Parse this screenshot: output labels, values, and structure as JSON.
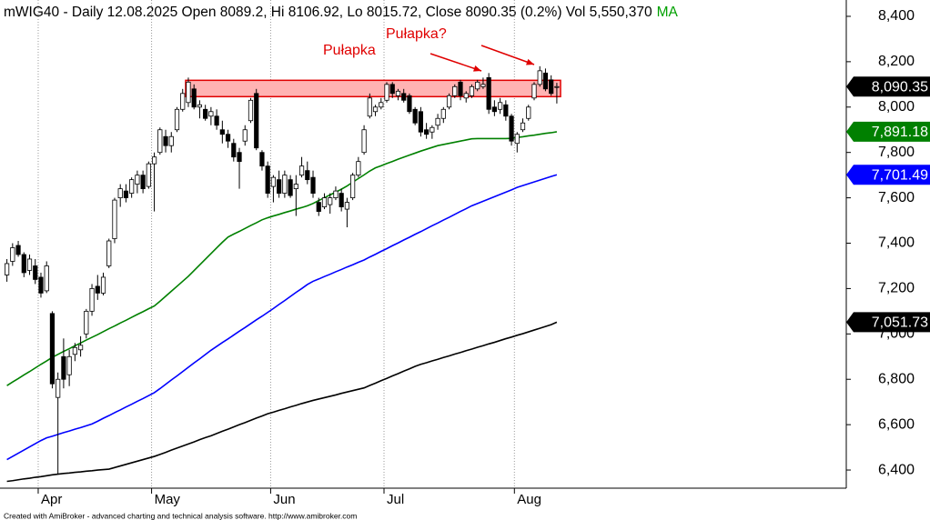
{
  "chart_data": {
    "type": "candlestick",
    "title": "mWIG40 - Daily 12.08.2025 Open 8089.2, Hi 8106.92, Lo 8015.72, Close 8090.35 (0.2%) Vol 5,550,370",
    "ma_label": "MA",
    "footer": "Created with AmiBroker - advanced charting and technical analysis software. http://www.amibroker.com",
    "categories": [
      null,
      null,
      null,
      null,
      null,
      null,
      "Apr",
      null,
      null,
      null,
      null,
      null,
      null,
      null,
      null,
      null,
      null,
      null,
      null,
      null,
      null,
      null,
      null,
      null,
      null,
      null,
      "May",
      null,
      null,
      null,
      null,
      null,
      null,
      null,
      null,
      null,
      null,
      null,
      null,
      null,
      null,
      null,
      null,
      null,
      null,
      null,
      null,
      "Jun",
      null,
      null,
      null,
      null,
      null,
      null,
      null,
      null,
      null,
      null,
      null,
      null,
      null,
      null,
      null,
      null,
      null,
      null,
      null,
      "Jul",
      null,
      null,
      null,
      null,
      null,
      null,
      null,
      null,
      null,
      null,
      null,
      null,
      null,
      null,
      null,
      null,
      null,
      null,
      null,
      null,
      null,
      null,
      "Aug",
      null,
      null,
      null,
      null,
      null,
      null,
      null
    ],
    "open": [
      7260,
      7320,
      7390,
      7350,
      7280,
      7300,
      7250,
      7190,
      7090,
      6720,
      6900,
      6820,
      6910,
      6930,
      7000,
      7100,
      7210,
      7180,
      7300,
      7420,
      7600,
      7630,
      7620,
      7660,
      7700,
      7650,
      7750,
      7800,
      7870,
      7830,
      7900,
      7990,
      8020,
      8080,
      8000,
      7990,
      7960,
      7960,
      7900,
      7880,
      7840,
      7800,
      7850,
      7940,
      8060,
      7800,
      7740,
      7650,
      7680,
      7620,
      7680,
      7640,
      7700,
      7720,
      7690,
      7580,
      7560,
      7570,
      7600,
      7620,
      7550,
      7600,
      7700,
      7800,
      7960,
      7980,
      8000,
      8030,
      8100,
      8050,
      8060,
      8050,
      7990,
      7980,
      7900,
      7890,
      7920,
      7950,
      8000,
      8050,
      8110,
      8040,
      8050,
      8080,
      8090,
      8130,
      8000,
      7990,
      8010,
      7960,
      7840,
      7900,
      7950,
      8040,
      8100,
      8150,
      8120,
      8089.2
    ],
    "high": [
      7330,
      7400,
      7410,
      7360,
      7350,
      7330,
      7270,
      7320,
      7100,
      6830,
      6980,
      6930,
      6960,
      6990,
      7110,
      7220,
      7260,
      7270,
      7420,
      7600,
      7660,
      7660,
      7690,
      7720,
      7720,
      7760,
      7800,
      7910,
      7900,
      7890,
      8000,
      8080,
      8130,
      8100,
      8030,
      8010,
      8000,
      7990,
      7940,
      7900,
      7860,
      7820,
      7920,
      8040,
      8080,
      7810,
      7760,
      7700,
      7720,
      7720,
      7700,
      7700,
      7780,
      7760,
      7720,
      7600,
      7620,
      7620,
      7650,
      7640,
      7600,
      7710,
      7780,
      7920,
      8060,
      8010,
      8040,
      8110,
      8110,
      8080,
      8080,
      8060,
      8000,
      8000,
      7930,
      7920,
      7970,
      8000,
      8060,
      8100,
      8120,
      8070,
      8100,
      8120,
      8130,
      8150,
      8030,
      8040,
      8030,
      7970,
      7890,
      7950,
      8010,
      8110,
      8180,
      8170,
      8140,
      8106.92
    ],
    "low": [
      7230,
      7300,
      7340,
      7250,
      7260,
      7220,
      7160,
      7180,
      6760,
      6380,
      6760,
      6770,
      6880,
      6900,
      6980,
      7080,
      7150,
      7170,
      7290,
      7400,
      7560,
      7580,
      7600,
      7620,
      7620,
      7640,
      7540,
      7790,
      7800,
      7800,
      7890,
      7980,
      8000,
      7990,
      7950,
      7940,
      7920,
      7900,
      7840,
      7820,
      7760,
      7640,
      7830,
      7930,
      7810,
      7720,
      7600,
      7580,
      7600,
      7600,
      7600,
      7520,
      7690,
      7660,
      7600,
      7520,
      7550,
      7530,
      7590,
      7540,
      7470,
      7590,
      7690,
      7790,
      7950,
      7960,
      7990,
      8020,
      8040,
      8030,
      8020,
      7970,
      7920,
      7870,
      7860,
      7860,
      7900,
      7930,
      7990,
      8040,
      8030,
      8020,
      8040,
      8070,
      8080,
      7970,
      7960,
      7970,
      7940,
      7830,
      7800,
      7890,
      7940,
      8030,
      8090,
      8070,
      8050,
      8015.72
    ],
    "close": [
      7310,
      7380,
      7350,
      7270,
      7330,
      7240,
      7180,
      7300,
      6780,
      6800,
      6800,
      6900,
      6940,
      6950,
      7100,
      7200,
      7180,
      7250,
      7410,
      7590,
      7640,
      7600,
      7680,
      7700,
      7640,
      7750,
      7780,
      7900,
      7830,
      7870,
      7990,
      8060,
      8110,
      8000,
      8010,
      7950,
      7980,
      7920,
      7880,
      7850,
      7780,
      7760,
      7900,
      8030,
      7820,
      7740,
      7620,
      7690,
      7620,
      7700,
      7610,
      7660,
      7740,
      7680,
      7620,
      7540,
      7600,
      7600,
      7630,
      7560,
      7580,
      7700,
      7760,
      7900,
      8040,
      8000,
      8020,
      8100,
      8060,
      8070,
      8030,
      7980,
      7930,
      7890,
      7880,
      7910,
      7950,
      7990,
      8050,
      8090,
      8050,
      8060,
      8090,
      8110,
      8100,
      7990,
      7980,
      8020,
      7960,
      7850,
      7880,
      7930,
      8000,
      8100,
      8160,
      8080,
      8060,
      8090.35
    ],
    "close_label": "8,090.35",
    "up_color": "#ffffff",
    "down_color": "#000000",
    "series": [
      {
        "color": "#008000",
        "value_label": "7,891.18",
        "values": [
          6772,
          6788,
          6803,
          6819,
          6834,
          6850,
          6866,
          6881,
          6897,
          6910,
          6923,
          6935,
          6948,
          6960,
          6973,
          6985,
          6997,
          7010,
          7023,
          7035,
          7048,
          7060,
          7073,
          7086,
          7098,
          7111,
          7123,
          7144,
          7166,
          7188,
          7210,
          7232,
          7254,
          7279,
          7304,
          7329,
          7354,
          7379,
          7404,
          7427,
          7440,
          7452,
          7465,
          7478,
          7490,
          7503,
          7512,
          7520,
          7527,
          7535,
          7542,
          7550,
          7557,
          7565,
          7575,
          7588,
          7600,
          7613,
          7625,
          7638,
          7652,
          7669,
          7685,
          7701,
          7718,
          7732,
          7741,
          7751,
          7760,
          7770,
          7779,
          7788,
          7797,
          7806,
          7814,
          7822,
          7830,
          7835,
          7840,
          7845,
          7850,
          7855,
          7860,
          7861,
          7861,
          7861,
          7861,
          7861,
          7861,
          7862,
          7866,
          7869,
          7873,
          7876,
          7880,
          7884,
          7887,
          7891.18
        ]
      },
      {
        "color": "#0000ff",
        "value_label": "7,701.49",
        "values": [
          6446,
          6460,
          6474,
          6488,
          6502,
          6516,
          6530,
          6542,
          6549,
          6557,
          6565,
          6572,
          6580,
          6587,
          6595,
          6603,
          6615,
          6628,
          6640,
          6653,
          6665,
          6678,
          6690,
          6703,
          6715,
          6728,
          6741,
          6759,
          6778,
          6797,
          6815,
          6834,
          6853,
          6872,
          6890,
          6909,
          6928,
          6945,
          6962,
          6978,
          6995,
          7012,
          7028,
          7045,
          7062,
          7078,
          7095,
          7112,
          7130,
          7147,
          7165,
          7183,
          7200,
          7218,
          7232,
          7242,
          7253,
          7263,
          7274,
          7284,
          7295,
          7305,
          7316,
          7326,
          7339,
          7351,
          7364,
          7376,
          7389,
          7401,
          7414,
          7426,
          7439,
          7451,
          7464,
          7477,
          7489,
          7502,
          7514,
          7527,
          7540,
          7552,
          7565,
          7575,
          7585,
          7595,
          7605,
          7615,
          7625,
          7635,
          7646,
          7654,
          7662,
          7670,
          7678,
          7686,
          7694,
          7701.49
        ]
      },
      {
        "color": "#000000",
        "value_label": "7,051.73",
        "values": [
          6350,
          6353,
          6357,
          6361,
          6364,
          6368,
          6371,
          6375,
          6379,
          6382,
          6385,
          6387,
          6390,
          6392,
          6395,
          6397,
          6400,
          6402,
          6404,
          6411,
          6418,
          6425,
          6432,
          6439,
          6446,
          6453,
          6460,
          6469,
          6478,
          6488,
          6497,
          6506,
          6515,
          6524,
          6534,
          6543,
          6551,
          6561,
          6571,
          6580,
          6590,
          6600,
          6609,
          6619,
          6629,
          6638,
          6648,
          6655,
          6663,
          6670,
          6678,
          6685,
          6693,
          6700,
          6707,
          6713,
          6719,
          6725,
          6731,
          6738,
          6744,
          6750,
          6756,
          6762,
          6773,
          6783,
          6794,
          6804,
          6815,
          6825,
          6836,
          6846,
          6857,
          6866,
          6873,
          6881,
          6888,
          6896,
          6903,
          6911,
          6918,
          6926,
          6933,
          6941,
          6948,
          6956,
          6963,
          6971,
          6979,
          6986,
          6994,
          7001,
          7009,
          7017,
          7025,
          7033,
          7041,
          7051.73
        ]
      }
    ],
    "zone": {
      "values": [
        8046,
        8118
      ],
      "color": "#ffb3b3",
      "border": "#e00000"
    },
    "annotations": [
      {
        "text": "Pułapka",
        "color": "#e00000"
      },
      {
        "text": "Pułapka?",
        "color": "#e00000"
      }
    ],
    "ylim": [
      6320,
      8472
    ],
    "yticks": [
      {
        "value": 6400,
        "label": "6,400"
      },
      {
        "value": 6600,
        "label": "6,600"
      },
      {
        "value": 6800,
        "label": "6,800"
      },
      {
        "value": 7000,
        "label": "7,000"
      },
      {
        "value": 7200,
        "label": "7,200"
      },
      {
        "value": 7400,
        "label": "7,400"
      },
      {
        "value": 7600,
        "label": "7,600"
      },
      {
        "value": 7800,
        "label": "7,800"
      },
      {
        "value": 8000,
        "label": "8,000"
      },
      {
        "value": 8200,
        "label": "8,200"
      },
      {
        "value": 8400,
        "label": "8,400"
      }
    ],
    "month_grid": true
  }
}
